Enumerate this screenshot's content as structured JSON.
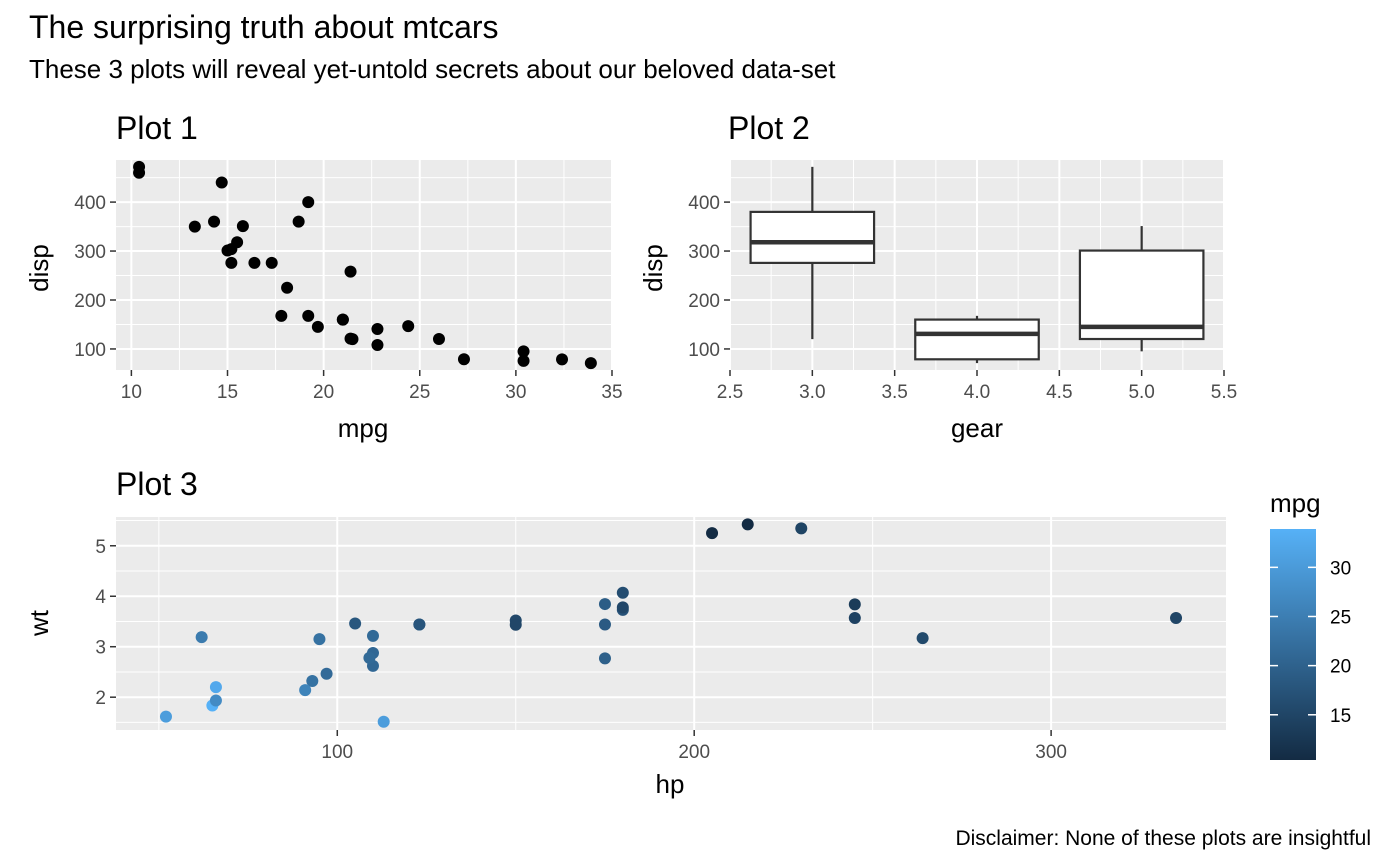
{
  "figure": {
    "title": "The surprising truth about mtcars",
    "subtitle": "These 3 plots will reveal yet-untold secrets about our beloved data-set",
    "caption": "Disclaimer: None of these plots are insightful"
  },
  "colors": {
    "panel_bg": "#EBEBEB",
    "grid_major": "#FFFFFF",
    "point": "#000000",
    "tick_text": "#4D4D4D",
    "gradient_low": "#132B43",
    "gradient_high": "#56B1F7"
  },
  "chart_data": [
    {
      "id": "plot1",
      "type": "scatter",
      "title": "Plot 1",
      "xlabel": "mpg",
      "ylabel": "disp",
      "xlim": [
        9.2,
        35.0
      ],
      "ylim": [
        57,
        486
      ],
      "xticks": [
        10,
        15,
        20,
        25,
        30,
        35
      ],
      "yticks": [
        100,
        200,
        300,
        400
      ],
      "xtick_labels": [
        "10",
        "15",
        "20",
        "25",
        "30",
        "35"
      ],
      "ytick_labels": [
        "100",
        "200",
        "300",
        "400"
      ],
      "grid": true,
      "points": [
        [
          21.0,
          160
        ],
        [
          21.0,
          160
        ],
        [
          22.8,
          108
        ],
        [
          21.4,
          258
        ],
        [
          18.7,
          360
        ],
        [
          18.1,
          225
        ],
        [
          14.3,
          360
        ],
        [
          24.4,
          146.7
        ],
        [
          22.8,
          140.8
        ],
        [
          19.2,
          167.6
        ],
        [
          17.8,
          167.6
        ],
        [
          16.4,
          275.8
        ],
        [
          17.3,
          275.8
        ],
        [
          15.2,
          275.8
        ],
        [
          10.4,
          472
        ],
        [
          10.4,
          460
        ],
        [
          14.7,
          440
        ],
        [
          32.4,
          78.7
        ],
        [
          30.4,
          75.7
        ],
        [
          33.9,
          71.1
        ],
        [
          21.5,
          120.1
        ],
        [
          15.5,
          318
        ],
        [
          15.2,
          304
        ],
        [
          13.3,
          350
        ],
        [
          19.2,
          400
        ],
        [
          27.3,
          79
        ],
        [
          26.0,
          120.3
        ],
        [
          30.4,
          95.1
        ],
        [
          15.8,
          351
        ],
        [
          19.7,
          145
        ],
        [
          15.0,
          301
        ],
        [
          21.4,
          121
        ]
      ]
    },
    {
      "id": "plot2",
      "type": "box",
      "title": "Plot 2",
      "xlabel": "gear",
      "ylabel": "disp",
      "xlim": [
        2.5,
        5.5
      ],
      "ylim": [
        57,
        486
      ],
      "xticks": [
        2.5,
        3.0,
        3.5,
        4.0,
        4.5,
        5.0,
        5.5
      ],
      "yticks": [
        100,
        200,
        300,
        400
      ],
      "xtick_labels": [
        "2.5",
        "3.0",
        "3.5",
        "4.0",
        "4.5",
        "5.0",
        "5.5"
      ],
      "ytick_labels": [
        "100",
        "200",
        "300",
        "400"
      ],
      "grid": true,
      "boxes": [
        {
          "x": 3,
          "min": 120.1,
          "q1": 275.8,
          "median": 318,
          "q3": 380,
          "max": 472
        },
        {
          "x": 4,
          "min": 71.1,
          "q1": 78.85,
          "median": 130.9,
          "q3": 160,
          "max": 167.6
        },
        {
          "x": 5,
          "min": 95.1,
          "q1": 120.3,
          "median": 145,
          "q3": 301,
          "max": 351
        }
      ]
    },
    {
      "id": "plot3",
      "type": "scatter",
      "title": "Plot 3",
      "xlabel": "hp",
      "ylabel": "wt",
      "xlim": [
        38,
        349
      ],
      "ylim": [
        1.35,
        5.57
      ],
      "xticks": [
        100,
        200,
        300
      ],
      "yticks": [
        2,
        3,
        4,
        5
      ],
      "xtick_labels": [
        "100",
        "200",
        "300"
      ],
      "ytick_labels": [
        "2",
        "3",
        "4",
        "5"
      ],
      "grid": true,
      "color_by": "mpg",
      "legend": {
        "title": "mpg",
        "position": "right",
        "range": [
          10.4,
          33.9
        ],
        "breaks": [
          15,
          20,
          25,
          30
        ],
        "break_labels": [
          "15",
          "20",
          "25",
          "30"
        ]
      },
      "points": [
        [
          110,
          2.62,
          21.0
        ],
        [
          110,
          2.875,
          21.0
        ],
        [
          93,
          2.32,
          22.8
        ],
        [
          110,
          3.215,
          21.4
        ],
        [
          175,
          3.44,
          18.7
        ],
        [
          105,
          3.46,
          18.1
        ],
        [
          245,
          3.57,
          14.3
        ],
        [
          62,
          3.19,
          24.4
        ],
        [
          95,
          3.15,
          22.8
        ],
        [
          123,
          3.44,
          19.2
        ],
        [
          123,
          3.44,
          17.8
        ],
        [
          180,
          4.07,
          16.4
        ],
        [
          180,
          3.73,
          17.3
        ],
        [
          180,
          3.78,
          15.2
        ],
        [
          205,
          5.25,
          10.4
        ],
        [
          215,
          5.424,
          10.4
        ],
        [
          230,
          5.345,
          14.7
        ],
        [
          66,
          2.2,
          32.4
        ],
        [
          52,
          1.615,
          30.4
        ],
        [
          65,
          1.835,
          33.9
        ],
        [
          97,
          2.465,
          21.5
        ],
        [
          150,
          3.52,
          15.5
        ],
        [
          150,
          3.435,
          15.2
        ],
        [
          245,
          3.84,
          13.3
        ],
        [
          175,
          3.845,
          19.2
        ],
        [
          66,
          1.935,
          27.3
        ],
        [
          91,
          2.14,
          26.0
        ],
        [
          113,
          1.513,
          30.4
        ],
        [
          264,
          3.17,
          15.8
        ],
        [
          175,
          2.77,
          19.7
        ],
        [
          335,
          3.57,
          15.0
        ],
        [
          109,
          2.78,
          21.4
        ]
      ]
    }
  ]
}
